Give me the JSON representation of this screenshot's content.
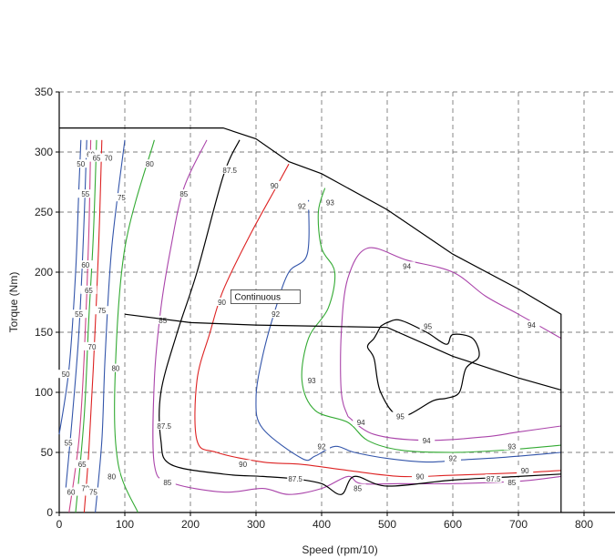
{
  "chart_data": {
    "type": "contour",
    "xlabel": "Speed (rpm/10)",
    "ylabel": "Torque (Nm)",
    "xlim": [
      0,
      800
    ],
    "ylim": [
      0,
      350
    ],
    "x_ticks": [
      0,
      100,
      200,
      300,
      400,
      500,
      600,
      700,
      800
    ],
    "y_ticks": [
      0,
      50,
      100,
      150,
      200,
      250,
      300,
      350
    ],
    "grid": true,
    "annotation": {
      "text": "Continuous",
      "x": 263,
      "y": 180
    },
    "boundaries": [
      {
        "name": "peak",
        "color": "#000000",
        "points": [
          [
            0,
            320
          ],
          [
            250,
            320
          ],
          [
            300,
            311
          ],
          [
            350,
            292
          ],
          [
            400,
            282
          ],
          [
            500,
            252
          ],
          [
            600,
            215
          ],
          [
            700,
            186
          ],
          [
            765,
            165
          ],
          [
            765,
            0
          ]
        ]
      },
      {
        "name": "continuous",
        "color": "#000000",
        "points": [
          [
            100,
            165
          ],
          [
            200,
            158
          ],
          [
            300,
            156
          ],
          [
            400,
            155
          ],
          [
            500,
            154
          ],
          [
            600,
            130
          ],
          [
            700,
            112
          ],
          [
            765,
            102
          ]
        ]
      }
    ],
    "contours": [
      {
        "level": "50",
        "color": "#3355aa",
        "points": [
          [
            0,
            65
          ],
          [
            15,
            120
          ],
          [
            25,
            200
          ],
          [
            30,
            270
          ],
          [
            33,
            310
          ]
        ],
        "label_at": [
          [
            33,
            290
          ],
          [
            10,
            115
          ]
        ]
      },
      {
        "level": "55",
        "color": "#3355aa",
        "points": [
          [
            10,
            20
          ],
          [
            20,
            80
          ],
          [
            30,
            150
          ],
          [
            37,
            230
          ],
          [
            42,
            310
          ]
        ],
        "label_at": [
          [
            40,
            265
          ],
          [
            30,
            165
          ],
          [
            14,
            58
          ]
        ]
      },
      {
        "level": "60",
        "color": "#cc4488",
        "points": [
          [
            15,
            0
          ],
          [
            30,
            60
          ],
          [
            38,
            130
          ],
          [
            45,
            230
          ],
          [
            48,
            310
          ]
        ],
        "label_at": [
          [
            48,
            298
          ],
          [
            40,
            206
          ],
          [
            18,
            17
          ]
        ]
      },
      {
        "level": "65",
        "color": "#33aa33",
        "points": [
          [
            25,
            0
          ],
          [
            38,
            80
          ],
          [
            45,
            160
          ],
          [
            52,
            230
          ],
          [
            57,
            310
          ]
        ],
        "label_at": [
          [
            57,
            295
          ],
          [
            45,
            185
          ],
          [
            35,
            40
          ]
        ]
      },
      {
        "level": "70",
        "color": "#dd2222",
        "points": [
          [
            38,
            0
          ],
          [
            45,
            50
          ],
          [
            52,
            120
          ],
          [
            60,
            220
          ],
          [
            65,
            310
          ]
        ],
        "label_at": [
          [
            75,
            295
          ],
          [
            50,
            138
          ],
          [
            40,
            20
          ]
        ]
      },
      {
        "level": "75",
        "color": "#3355aa",
        "points": [
          [
            55,
            0
          ],
          [
            65,
            60
          ],
          [
            70,
            130
          ],
          [
            80,
            220
          ],
          [
            100,
            310
          ]
        ],
        "label_at": [
          [
            95,
            262
          ],
          [
            65,
            168
          ],
          [
            52,
            17
          ]
        ]
      },
      {
        "level": "80",
        "color": "#33aa33",
        "points": [
          [
            120,
            0
          ],
          [
            90,
            40
          ],
          [
            85,
            110
          ],
          [
            100,
            220
          ],
          [
            145,
            310
          ]
        ],
        "label_at": [
          [
            138,
            290
          ],
          [
            86,
            120
          ],
          [
            80,
            30
          ]
        ]
      },
      {
        "level": "85",
        "color": "#aa44aa",
        "points": [
          [
            225,
            310
          ],
          [
            190,
            270
          ],
          [
            170,
            220
          ],
          [
            155,
            170
          ],
          [
            145,
            110
          ],
          [
            145,
            40
          ],
          [
            170,
            25
          ],
          [
            250,
            17
          ],
          [
            310,
            20
          ],
          [
            350,
            15
          ],
          [
            400,
            20
          ],
          [
            440,
            30
          ],
          [
            460,
            24
          ],
          [
            520,
            24
          ],
          [
            600,
            24
          ],
          [
            700,
            26
          ],
          [
            765,
            30
          ]
        ],
        "label_at": [
          [
            190,
            265
          ],
          [
            158,
            160
          ],
          [
            165,
            25
          ],
          [
            455,
            20
          ],
          [
            690,
            25
          ]
        ]
      },
      {
        "level": "87.5",
        "color": "#000000",
        "points": [
          [
            275,
            310
          ],
          [
            250,
            280
          ],
          [
            210,
            200
          ],
          [
            180,
            150
          ],
          [
            155,
            100
          ],
          [
            155,
            60
          ],
          [
            170,
            40
          ],
          [
            250,
            32
          ],
          [
            310,
            30
          ],
          [
            360,
            28
          ],
          [
            400,
            24
          ],
          [
            430,
            15
          ],
          [
            450,
            30
          ],
          [
            500,
            22
          ],
          [
            600,
            27
          ],
          [
            700,
            30
          ],
          [
            765,
            32
          ]
        ],
        "label_at": [
          [
            260,
            285
          ],
          [
            160,
            72
          ],
          [
            360,
            28
          ],
          [
            662,
            28
          ]
        ]
      },
      {
        "level": "90",
        "color": "#dd2222",
        "points": [
          [
            350,
            290
          ],
          [
            330,
            270
          ],
          [
            290,
            230
          ],
          [
            250,
            185
          ],
          [
            230,
            150
          ],
          [
            210,
            110
          ],
          [
            210,
            60
          ],
          [
            240,
            50
          ],
          [
            310,
            42
          ],
          [
            370,
            40
          ],
          [
            440,
            35
          ],
          [
            520,
            30
          ],
          [
            600,
            31
          ],
          [
            700,
            33
          ],
          [
            765,
            35
          ]
        ],
        "label_at": [
          [
            328,
            272
          ],
          [
            248,
            175
          ],
          [
            280,
            40
          ],
          [
            550,
            30
          ],
          [
            710,
            35
          ]
        ]
      },
      {
        "level": "92",
        "color": "#3355aa",
        "points": [
          [
            380,
            260
          ],
          [
            378,
            215
          ],
          [
            350,
            200
          ],
          [
            330,
            170
          ],
          [
            310,
            130
          ],
          [
            300,
            95
          ],
          [
            310,
            70
          ],
          [
            370,
            45
          ],
          [
            390,
            47
          ],
          [
            420,
            55
          ],
          [
            450,
            50
          ],
          [
            500,
            45
          ],
          [
            560,
            42
          ],
          [
            620,
            44
          ],
          [
            680,
            46
          ],
          [
            765,
            50
          ]
        ],
        "label_at": [
          [
            370,
            255
          ],
          [
            330,
            165
          ],
          [
            400,
            55
          ],
          [
            600,
            45
          ]
        ]
      },
      {
        "level": "93",
        "color": "#33aa33",
        "points": [
          [
            405,
            270
          ],
          [
            395,
            250
          ],
          [
            400,
            220
          ],
          [
            420,
            200
          ],
          [
            410,
            170
          ],
          [
            380,
            145
          ],
          [
            370,
            110
          ],
          [
            390,
            85
          ],
          [
            440,
            75
          ],
          [
            470,
            60
          ],
          [
            520,
            52
          ],
          [
            600,
            50
          ],
          [
            680,
            52
          ],
          [
            765,
            56
          ]
        ],
        "label_at": [
          [
            413,
            258
          ],
          [
            385,
            110
          ],
          [
            690,
            55
          ]
        ]
      },
      {
        "level": "94",
        "color": "#aa44aa",
        "points": [
          [
            440,
            80
          ],
          [
            430,
            100
          ],
          [
            430,
            150
          ],
          [
            440,
            195
          ],
          [
            470,
            220
          ],
          [
            530,
            210
          ],
          [
            600,
            200
          ],
          [
            650,
            180
          ],
          [
            700,
            165
          ],
          [
            765,
            145
          ]
        ],
        "label_at": [
          [
            460,
            75
          ],
          [
            530,
            205
          ],
          [
            720,
            156
          ],
          [
            560,
            60
          ]
        ]
      },
      {
        "level": "94",
        "color": "#aa44aa",
        "points": [
          [
            440,
            80
          ],
          [
            480,
            65
          ],
          [
            560,
            60
          ],
          [
            650,
            63
          ],
          [
            700,
            67
          ],
          [
            765,
            72
          ]
        ],
        "label_at": []
      },
      {
        "level": "95",
        "color": "#000000",
        "points": [
          [
            490,
            155
          ],
          [
            480,
            145
          ],
          [
            470,
            138
          ],
          [
            480,
            128
          ],
          [
            490,
            100
          ],
          [
            520,
            80
          ],
          [
            570,
            93
          ],
          [
            590,
            95
          ],
          [
            610,
            100
          ],
          [
            620,
            120
          ],
          [
            640,
            130
          ],
          [
            630,
            145
          ],
          [
            600,
            148
          ],
          [
            590,
            140
          ],
          [
            560,
            150
          ],
          [
            520,
            160
          ],
          [
            500,
            158
          ],
          [
            490,
            155
          ]
        ],
        "label_at": [
          [
            562,
            155
          ],
          [
            520,
            80
          ]
        ]
      }
    ]
  }
}
